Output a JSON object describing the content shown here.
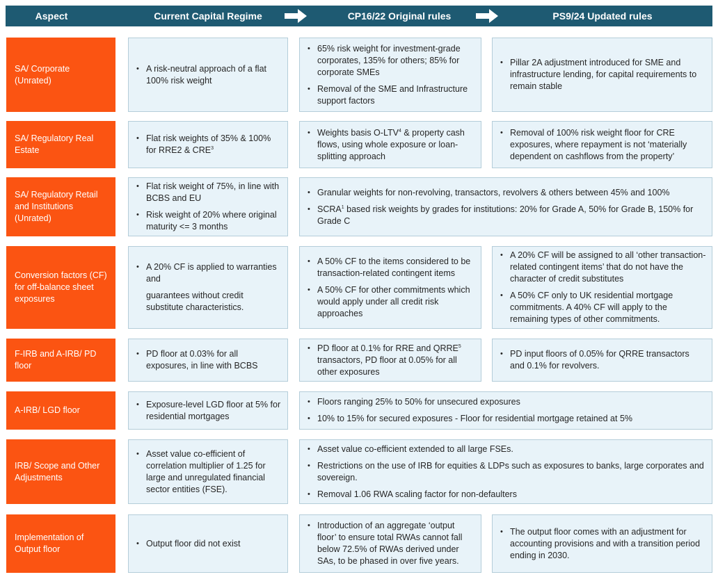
{
  "header": {
    "aspect": "Aspect",
    "current": "Current Capital Regime",
    "cp": "CP16/22 Original rules",
    "ps": "PS9/24 Updated rules",
    "arrow_color": "#ffffff",
    "bg_color": "#1e5a72"
  },
  "colors": {
    "aspect_bg": "#fb5412",
    "cell_bg": "#e8f3f9",
    "cell_border": "#b4cdd9"
  },
  "rows": [
    {
      "aspect": "SA/ Corporate (Unrated)",
      "current": [
        "A risk-neutral approach of a flat 100% risk weight"
      ],
      "cp": [
        "65% risk weight for investment-grade corporates, 135% for others; 85% for corporate SMEs",
        "Removal of the SME and Infrastructure support factors"
      ],
      "ps": [
        "Pillar 2A adjustment introduced for SME and infrastructure lending, for capital requirements to remain stable"
      ]
    },
    {
      "aspect": "SA/ Regulatory Real Estate",
      "current": [
        "Flat risk weights of 35% & 100% for RRE2 & CRE",
        "3"
      ],
      "cp": [
        "Weights basis O-LTV",
        "4",
        " & property cash flows, using whole exposure or loan-splitting approach"
      ],
      "ps": [
        "Removal of 100% risk weight floor for CRE exposures, where repayment is not ‘materially dependent on cashflows from the property’"
      ]
    },
    {
      "aspect": "SA/ Regulatory Retail and Institutions (Unrated)",
      "current": [
        "Flat risk weight of 75%, in line with BCBS and EU",
        "Risk weight of 20% where original maturity <= 3 months"
      ],
      "merged": [
        "Granular weights for non-revolving, transactors, revolvers & others between 45% and 100%",
        "SCRA",
        "1",
        " based risk weights by grades for institutions: 20% for Grade A, 50% for Grade B, 150% for Grade C"
      ]
    },
    {
      "aspect": "Conversion factors (CF) for off-balance sheet exposures",
      "current": [
        "A 20% CF is applied to warranties and",
        "guarantees without credit substitute characteristics."
      ],
      "cp": [
        "A 50% CF to the items considered to be transaction-related contingent items",
        "A 50% CF for other commitments which would apply under all credit risk approaches"
      ],
      "ps": [
        "A 20% CF will be assigned to all ‘other transaction-related contingent items’ that do not have the character of credit substitutes",
        "A 50% CF only to UK residential mortgage commitments. A 40% CF will apply to the remaining types of other commitments."
      ]
    },
    {
      "aspect": "F-IRB and A-IRB/ PD floor",
      "current": [
        "PD floor at 0.03% for all exposures, in line with BCBS"
      ],
      "cp": [
        "PD floor at 0.1% for RRE and QRRE",
        "5",
        " transactors, PD floor at 0.05% for all other exposures"
      ],
      "ps": [
        "PD input floors of 0.05% for QRRE transactors and 0.1% for revolvers."
      ]
    },
    {
      "aspect": "A-IRB/ LGD floor",
      "current": [
        "Exposure-level LGD floor at 5% for residential mortgages"
      ],
      "merged": [
        "Floors ranging 25% to 50% for unsecured exposures",
        "10% to 15% for secured exposures - Floor for residential mortgage retained at 5%"
      ]
    },
    {
      "aspect": "IRB/ Scope and Other Adjustments",
      "current": [
        "Asset value co-efficient of correlation multiplier of 1.25 for large and unregulated financial sector entities (FSE)."
      ],
      "merged": [
        "Asset value co-efficient extended to all large FSEs.",
        "Restrictions on the use of IRB for equities & LDPs such as exposures to banks, large corporates and sovereign.",
        "Removal 1.06 RWA scaling factor for non-defaulters"
      ]
    },
    {
      "aspect": "Implementation of Output floor",
      "current": [
        "Output floor did not exist"
      ],
      "cp": [
        "Introduction of an aggregate ‘output floor’ to ensure total RWAs cannot fall below 72.5% of RWAs derived under SAs, to be phased in over five years."
      ],
      "ps": [
        "The output floor comes with an adjustment for accounting provisions and with a transition period ending in 2030."
      ]
    }
  ]
}
